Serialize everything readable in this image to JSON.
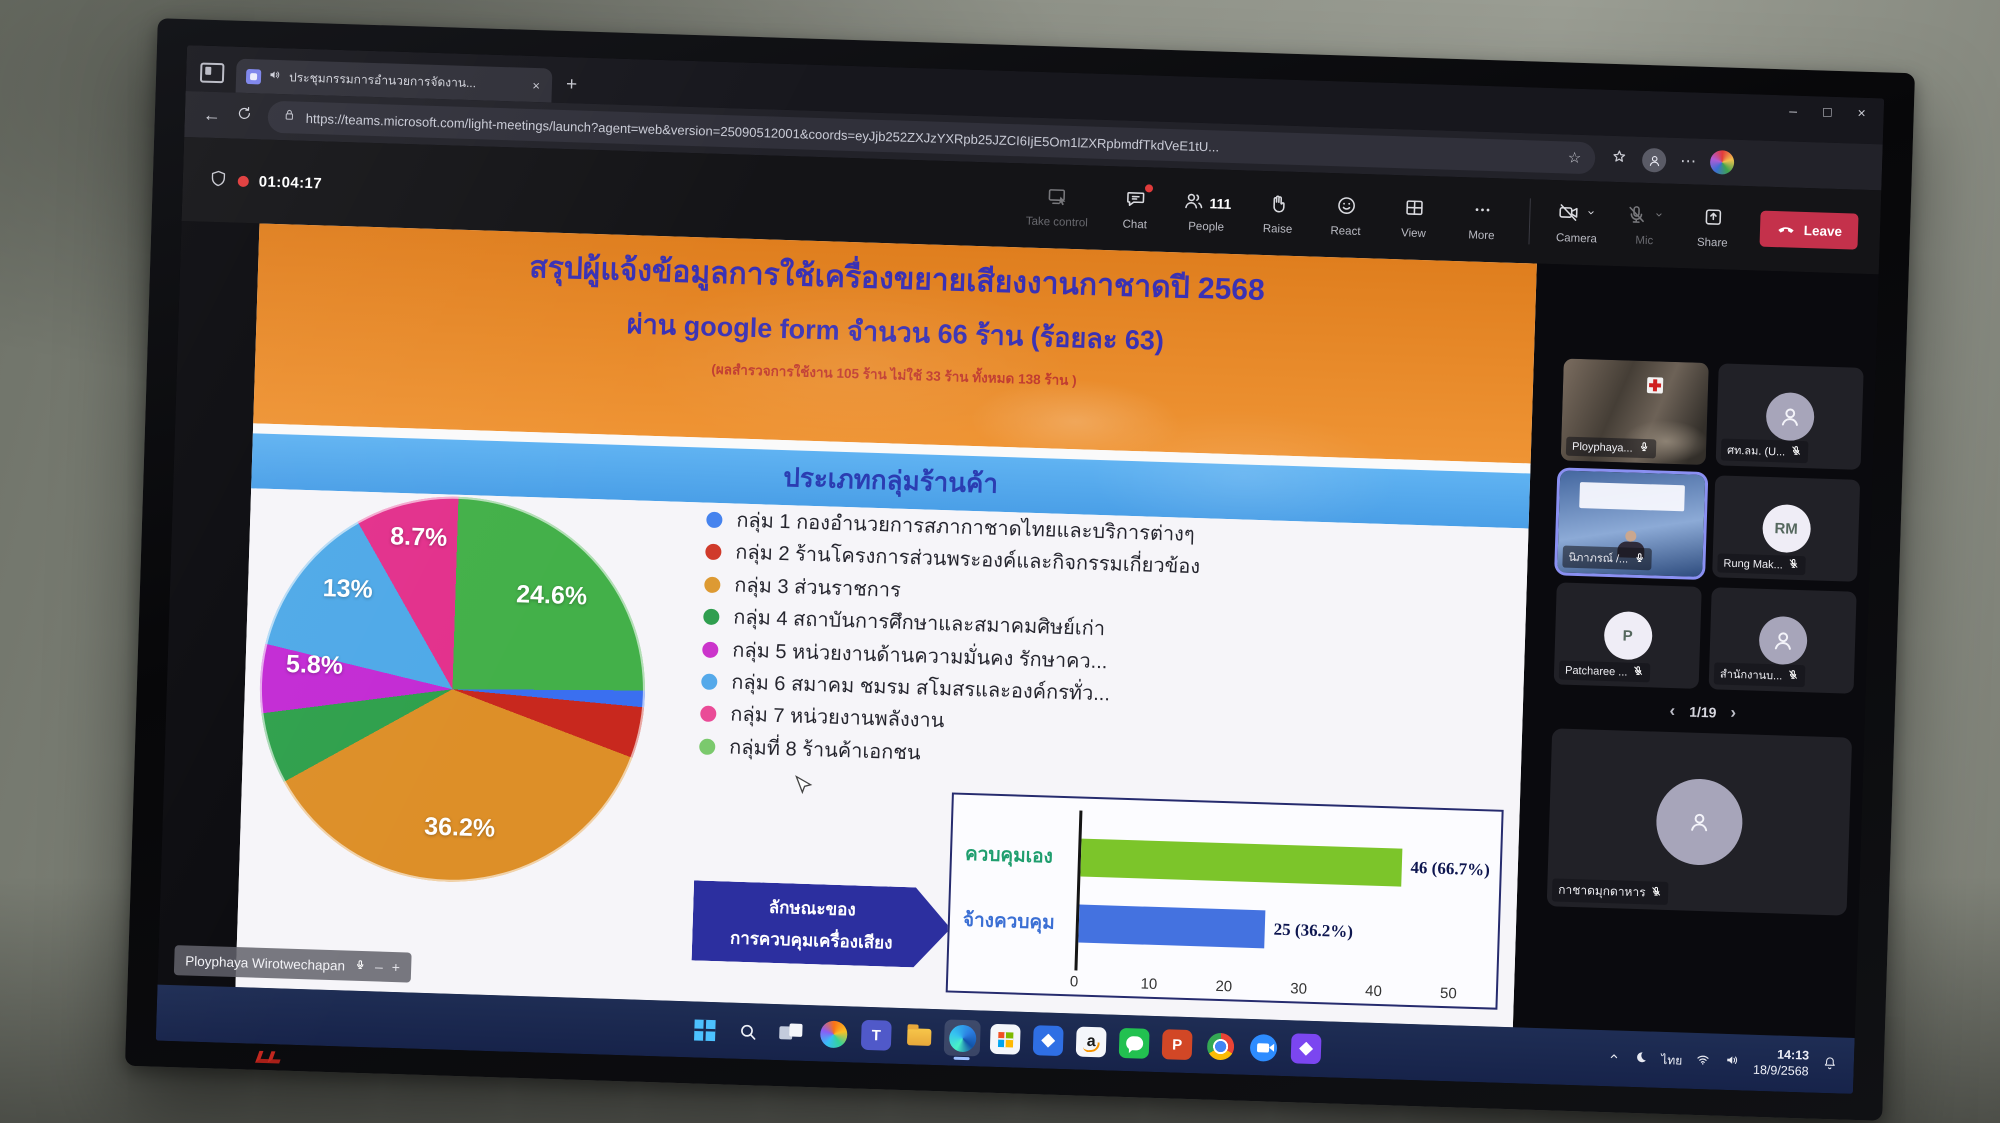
{
  "icons": {
    "minimize": "–",
    "maximize": "□",
    "close": "×",
    "plus": "+",
    "minus": "–",
    "star": "☆",
    "dots": "⋯",
    "back": "←"
  },
  "browser": {
    "tab_title": "ประชุมกรรมการอำนวยการจัดงาน...",
    "url": "https://teams.microsoft.com/light-meetings/launch?agent=web&version=25090512001&coords=eyJjb252ZXJzYXRpb25JZCI6IjE5Om1lZXRpbmdfTkdVeE1tU..."
  },
  "teams": {
    "timer": "01:04:17",
    "people_count": "111",
    "controls": [
      {
        "id": "take-control",
        "icon": "takecontrol",
        "label": "Take control",
        "dim": true
      },
      {
        "id": "chat",
        "icon": "chat",
        "label": "Chat",
        "badge": true
      },
      {
        "id": "people",
        "icon": "people",
        "label": "People",
        "count": "111"
      },
      {
        "id": "raise",
        "icon": "raise",
        "label": "Raise"
      },
      {
        "id": "react",
        "icon": "react",
        "label": "React"
      },
      {
        "id": "view",
        "icon": "view",
        "label": "View"
      },
      {
        "id": "more",
        "icon": "more",
        "label": "More"
      },
      {
        "divider": true
      },
      {
        "id": "camera",
        "icon": "cameraoff",
        "label": "Camera",
        "chevron": true
      },
      {
        "id": "mic",
        "icon": "micoff",
        "label": "Mic",
        "chevron": true,
        "dim": true
      },
      {
        "id": "share",
        "icon": "share",
        "label": "Share"
      },
      {
        "id": "leave",
        "icon": "leave",
        "label": "Leave",
        "primary": true
      }
    ]
  },
  "slide": {
    "title_line1": "สรุปผู้แจ้งข้อมูลการใช้เครื่องขยายเสียงงานกาชาดปี 2568",
    "title_line2": "ผ่าน google form จำนวน 66 ร้าน (ร้อยละ 63)",
    "subtitle": "(ผลสำรวจการใช้งาน 105 ร้าน ไม่ใช้ 33 ร้าน ทั้งหมด 138 ร้าน )",
    "banner_title": "ประเภทกลุ่มร้านค้า",
    "legend": [
      {
        "color": "#4683ee",
        "text": "กลุ่ม 1 กองอำนวยการสภากาชาดไทยและบริการต่างๆ"
      },
      {
        "color": "#d03a2b",
        "text": "กลุ่ม 2 ร้านโครงการส่วนพระองค์และกิจกรรมเกี่ยวข้อง"
      },
      {
        "color": "#dd9a33",
        "text": "กลุ่ม 3 ส่วนราชการ"
      },
      {
        "color": "#2f9e4f",
        "text": "กลุ่ม 4 สถาบันการศึกษาและสมาคมศิษย์เก่า"
      },
      {
        "color": "#cb34cb",
        "text": "กลุ่ม 5 หน่วยงานด้านความมั่นคง รักษาคว..."
      },
      {
        "color": "#55a9ea",
        "text": "กลุ่ม 6 สมาคม ชมรม สโมสรและองค์กรทั่ว..."
      },
      {
        "color": "#ea4b97",
        "text": "กลุ่ม 7 หน่วยงานพลังงาน"
      },
      {
        "color": "#7bc96d",
        "text": "กลุ่มที่ 8 ร้านค้าเอกชน"
      }
    ],
    "arrow_line1": "ลักษณะของ",
    "arrow_line2": "การควบคุมเครื่องเสียง",
    "presenter": "Ployphaya Wirotwechapan"
  },
  "chart_data": [
    {
      "type": "pie",
      "title": "ประเภทกลุ่มร้านค้า",
      "slices": [
        {
          "group": "กลุ่ม 4 สถาบันการศึกษาและสมาคมศิษย์เก่า",
          "value": 24.6,
          "label": "24.6%",
          "color": "#43b049"
        },
        {
          "group": "กลุ่ม 1 กองอำนวยการสภากาชาดไทยและบริการต่างๆ",
          "value": 1.4,
          "label": "",
          "color": "#3a6ff0"
        },
        {
          "group": "กลุ่ม 2 ร้านโครงการส่วนพระองค์และกิจกรรมเกี่ยวข้อง",
          "value": 4.3,
          "label": "",
          "color": "#c8281e"
        },
        {
          "group": "กลุ่ม 3 ส่วนราชการ",
          "value": 36.2,
          "label": "36.2%",
          "color": "#dd8f28"
        },
        {
          "group": "กลุ่มที่ 8 ร้านค้าเอกชน",
          "value": 6.0,
          "label": "",
          "color": "#2fa04c"
        },
        {
          "group": "กลุ่ม 5 หน่วยงานด้านความมั่นคง รักษาคว...",
          "value": 5.8,
          "label": "5.8%",
          "color": "#c32bd4"
        },
        {
          "group": "กลุ่ม 6 สมาคม ชมรม สโมสรและองค์กรทั่ว...",
          "value": 13.0,
          "label": "13%",
          "color": "#4fa9e8"
        },
        {
          "group": "กลุ่ม 7 หน่วยงานพลังงาน",
          "value": 8.7,
          "label": "8.7%",
          "color": "#e3318c"
        }
      ]
    },
    {
      "type": "bar",
      "orientation": "horizontal",
      "title": "ลักษณะของ การควบคุมเครื่องเสียง",
      "categories": [
        "ควบคุมเอง",
        "จ้างควบคุม"
      ],
      "values": [
        46,
        25
      ],
      "value_labels": [
        "46 (66.7%)",
        "25 (36.2%)"
      ],
      "bar_colors": [
        "#7cc52a",
        "#4472e0"
      ],
      "category_colors": [
        "#1f9e6e",
        "#3b6fd4"
      ],
      "xlim": [
        0,
        55
      ],
      "ticks": [
        0,
        10,
        20,
        30,
        40,
        50
      ]
    }
  ],
  "participants": {
    "tiles": [
      {
        "kind": "video-room",
        "label": "Ployphaya...",
        "muted": false
      },
      {
        "kind": "avatar",
        "label": "ศท.ลม. (U...",
        "muted": true
      },
      {
        "kind": "video-presenter",
        "label": "นิภาภรณ์ /...",
        "muted": false,
        "active": true
      },
      {
        "kind": "avatar",
        "initials": "RM",
        "label": "Rung Mak...",
        "muted": true
      },
      {
        "kind": "avatar",
        "initials": "P",
        "label": "Patcharee ...",
        "muted": true
      },
      {
        "kind": "avatar",
        "label": "สำนักงานบ...",
        "muted": true
      }
    ],
    "pagination": {
      "prev": "‹",
      "current": "1/19",
      "next": "›"
    },
    "spotlight": {
      "kind": "avatar",
      "label": "กาชาดมุกดาหาร",
      "muted": true
    }
  },
  "taskbar": {
    "apps": [
      {
        "id": "start"
      },
      {
        "id": "search"
      },
      {
        "id": "task-view"
      },
      {
        "id": "copilot"
      },
      {
        "id": "teams",
        "glyph": "T"
      },
      {
        "id": "file-explorer"
      },
      {
        "id": "edge",
        "active": true
      },
      {
        "id": "store"
      },
      {
        "id": "dropbox"
      },
      {
        "id": "amazon",
        "glyph": "a"
      },
      {
        "id": "line"
      },
      {
        "id": "powerpoint",
        "glyph": "P"
      },
      {
        "id": "chrome"
      },
      {
        "id": "zoom"
      },
      {
        "id": "clipchamp"
      }
    ],
    "tray": {
      "language": "ไทย",
      "time": "14:13",
      "date": "18/9/2568"
    }
  }
}
